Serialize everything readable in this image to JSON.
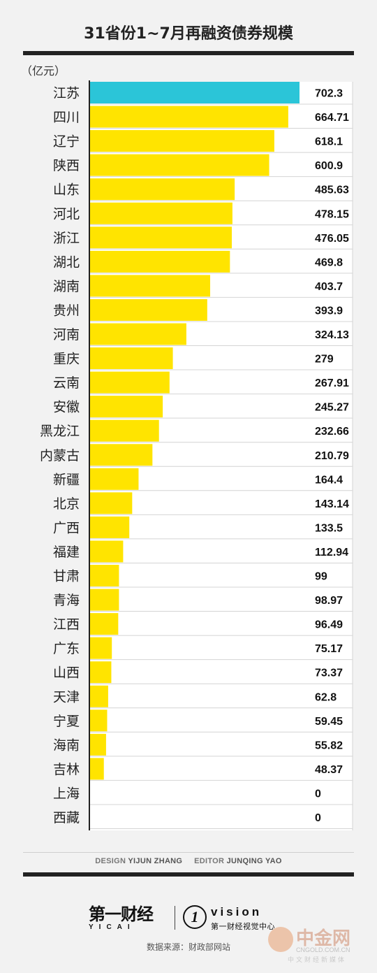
{
  "chart_data": {
    "type": "bar",
    "orientation": "horizontal",
    "title": "31省份1~7月再融资债券规模",
    "unit": "（亿元）",
    "categories": [
      "江苏",
      "四川",
      "辽宁",
      "陕西",
      "山东",
      "河北",
      "浙江",
      "湖北",
      "湖南",
      "贵州",
      "河南",
      "重庆",
      "云南",
      "安徽",
      "黑龙江",
      "内蒙古",
      "新疆",
      "北京",
      "广西",
      "福建",
      "甘肃",
      "青海",
      "江西",
      "广东",
      "山西",
      "天津",
      "宁夏",
      "海南",
      "吉林",
      "上海",
      "西藏"
    ],
    "values": [
      702.3,
      664.71,
      618.1,
      600.9,
      485.63,
      478.15,
      476.05,
      469.8,
      403.7,
      393.9,
      324.13,
      279,
      267.91,
      245.27,
      232.66,
      210.79,
      164.4,
      143.14,
      133.5,
      112.94,
      99,
      98.97,
      96.49,
      75.17,
      73.37,
      62.8,
      59.45,
      55.82,
      48.37,
      0,
      0
    ],
    "value_labels": [
      "702.3",
      "664.71",
      "618.1",
      "600.9",
      "485.63",
      "478.15",
      "476.05",
      "469.8",
      "403.7",
      "393.9",
      "324.13",
      "279",
      "267.91",
      "245.27",
      "232.66",
      "210.79",
      "164.4",
      "143.14",
      "133.5",
      "112.94",
      "99",
      "98.97",
      "96.49",
      "75.17",
      "73.37",
      "62.8",
      "59.45",
      "55.82",
      "48.37",
      "0",
      "0"
    ],
    "highlight_index": 0,
    "colors": {
      "highlight": "#2bc5d8",
      "bar": "#ffe400",
      "axis": "#222222",
      "row_line": "#d4d4d4",
      "row_bg": "#ffffff"
    },
    "xlim": [
      0,
      702.3
    ],
    "grid": false,
    "legend": "none"
  },
  "credits": {
    "design_label": "DESIGN",
    "design_name": "YIJUN ZHANG",
    "editor_label": "EDITOR",
    "editor_name": "JUNQING YAO"
  },
  "logos": {
    "yicai_cn": "第一财经",
    "yicai_en": "YICAI",
    "vision_mark": "1",
    "vision_en": "vision",
    "vision_cn": "第一财经视觉中心"
  },
  "source": "数据来源：财政部网站",
  "watermark": {
    "name": "中金网",
    "url": "CNGOLD.COM.CN",
    "sub": "中文财经新媒体"
  }
}
